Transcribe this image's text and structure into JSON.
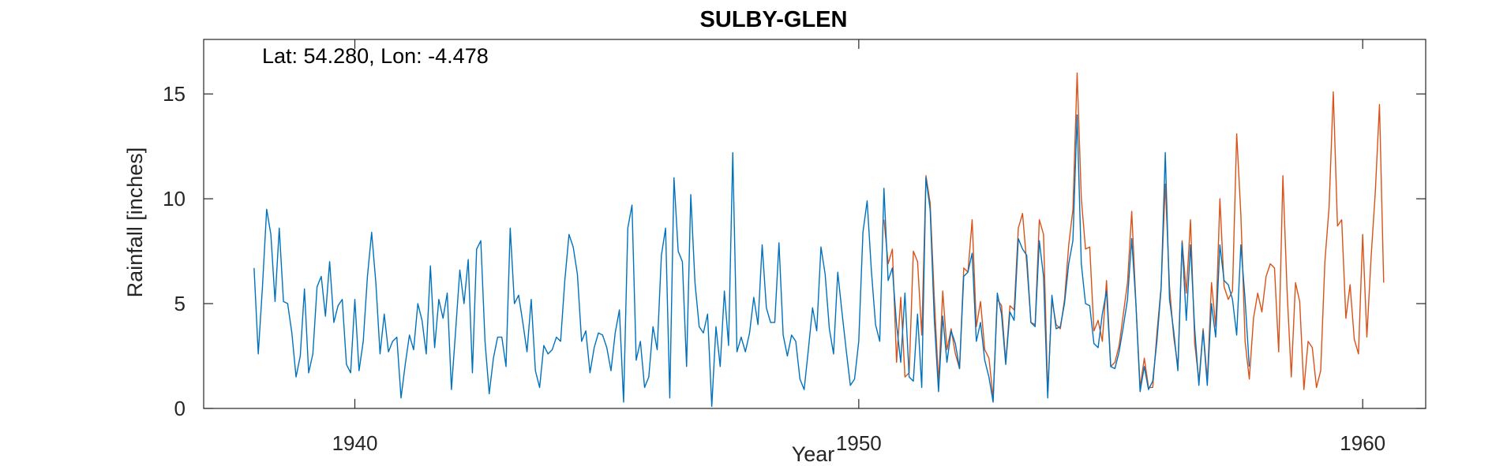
{
  "chart_data": {
    "type": "line",
    "title": "SULBY-GLEN",
    "xlabel": "Year",
    "ylabel": "Rainfall [inches]",
    "annotation": "Lat: 54.280, Lon: -4.478",
    "xlim": [
      1937,
      1961.25
    ],
    "ylim": [
      0,
      17.6
    ],
    "xticks": [
      1940,
      1950,
      1960
    ],
    "yticks": [
      0,
      5,
      10,
      15
    ],
    "grid": false,
    "box": true,
    "series": [
      {
        "color": "#0072BD",
        "x_start": 1938.0,
        "x_step": 0.08333,
        "values": [
          6.7,
          2.6,
          5.8,
          9.5,
          8.3,
          5.1,
          8.6,
          5.1,
          5.0,
          3.6,
          1.5,
          2.5,
          5.7,
          1.7,
          2.6,
          5.8,
          6.3,
          4.4,
          7.0,
          4.1,
          4.9,
          5.2,
          2.1,
          1.7,
          5.2,
          1.8,
          3.2,
          6.3,
          8.4,
          6.0,
          2.6,
          4.5,
          2.7,
          3.2,
          3.4,
          0.5,
          2.1,
          3.5,
          2.8,
          5.0,
          4.2,
          2.6,
          6.8,
          2.9,
          5.2,
          4.3,
          5.5,
          0.9,
          3.7,
          6.6,
          5.0,
          7.1,
          1.7,
          7.6,
          8.0,
          3.2,
          0.7,
          2.4,
          3.4,
          3.4,
          2.0,
          8.6,
          5.0,
          5.4,
          4.1,
          2.7,
          5.2,
          1.8,
          1.0,
          3.0,
          2.6,
          2.8,
          3.4,
          3.2,
          6.1,
          8.3,
          7.7,
          6.4,
          3.2,
          3.7,
          1.7,
          2.9,
          3.6,
          3.5,
          2.9,
          1.8,
          3.6,
          4.7,
          0.3,
          8.6,
          9.7,
          2.3,
          3.2,
          1.0,
          1.5,
          3.9,
          2.8,
          7.3,
          8.6,
          0.5,
          11.0,
          7.5,
          7.0,
          2.0,
          10.2,
          6.0,
          3.9,
          3.6,
          4.5,
          0.1,
          3.9,
          2.0,
          5.6,
          3.0,
          12.2,
          2.7,
          3.4,
          2.7,
          3.6,
          5.3,
          4.0,
          7.8,
          4.8,
          4.1,
          4.1,
          7.9,
          3.5,
          2.5,
          3.5,
          3.2,
          1.4,
          0.9,
          2.8,
          4.8,
          3.7,
          7.7,
          6.4,
          3.8,
          2.6,
          6.5,
          4.6,
          2.8,
          1.1,
          1.4,
          3.2,
          8.4,
          9.9,
          6.6,
          4.0,
          3.2,
          10.5,
          6.1,
          6.7,
          4.0,
          2.2,
          5.5,
          1.5,
          1.3,
          4.5,
          1.0,
          11.0,
          9.5,
          4.2,
          0.8,
          4.4,
          2.2,
          3.7,
          3.1,
          1.9,
          6.3,
          6.5,
          7.4,
          3.2,
          4.1,
          2.3,
          1.5,
          0.3,
          5.5,
          4.5,
          2.1,
          4.6,
          4.2,
          8.1,
          7.6,
          7.3,
          4.1,
          3.9,
          8.0,
          6.3,
          0.5,
          5.4,
          3.8,
          3.9,
          5.0,
          6.9,
          8.0,
          14.0,
          6.9,
          5.0,
          4.9,
          3.1,
          2.9,
          4.5,
          5.6,
          2.0,
          1.9,
          2.7,
          3.9,
          5.2,
          8.1,
          5.0,
          0.8,
          2.0,
          0.9,
          1.3,
          3.2,
          5.7,
          12.2,
          5.2,
          3.7,
          1.8,
          7.9,
          4.2,
          7.8,
          3.8,
          1.1,
          3.7,
          1.1,
          5.0,
          3.4,
          7.8,
          6.1,
          5.9,
          5.2,
          3.5,
          7.8,
          5.2,
          2.0
        ]
      },
      {
        "color": "#D95319",
        "x_start": 1950.5,
        "x_step": 0.08333,
        "values": [
          9.0,
          6.9,
          7.6,
          2.2,
          5.3,
          1.5,
          1.7,
          7.5,
          7.0,
          3.5,
          11.1,
          9.8,
          5.2,
          1.2,
          5.6,
          2.8,
          3.8,
          2.6,
          1.9,
          6.7,
          6.5,
          9.0,
          3.9,
          5.1,
          2.8,
          2.4,
          0.5,
          5.2,
          4.9,
          2.2,
          4.9,
          4.7,
          8.6,
          9.3,
          6.9,
          4.1,
          4.0,
          9.0,
          8.3,
          0.7,
          5.2,
          4.0,
          3.8,
          5.2,
          7.8,
          9.5,
          16.0,
          10.0,
          7.6,
          7.7,
          3.7,
          4.2,
          3.2,
          6.1,
          2.0,
          2.2,
          3.0,
          4.5,
          6.0,
          9.4,
          5.0,
          1.0,
          2.4,
          1.0,
          1.0,
          3.6,
          5.8,
          10.7,
          5.8,
          3.4,
          2.0,
          8.0,
          5.5,
          9.0,
          3.1,
          1.3,
          3.8,
          1.3,
          6.0,
          3.9,
          10.0,
          5.8,
          5.2,
          5.6,
          13.1,
          9.2,
          3.2,
          1.4,
          4.3,
          5.5,
          4.6,
          6.3,
          6.9,
          6.7,
          2.7,
          11.1,
          5.6,
          1.5,
          6.0,
          5.1,
          0.9,
          3.2,
          2.9,
          1.0,
          1.8,
          7.0,
          9.6,
          15.1,
          8.7,
          9.0,
          4.3,
          5.9,
          3.3,
          2.6,
          8.3,
          3.4,
          7.2,
          10.3,
          14.5,
          6.0
        ]
      }
    ]
  }
}
